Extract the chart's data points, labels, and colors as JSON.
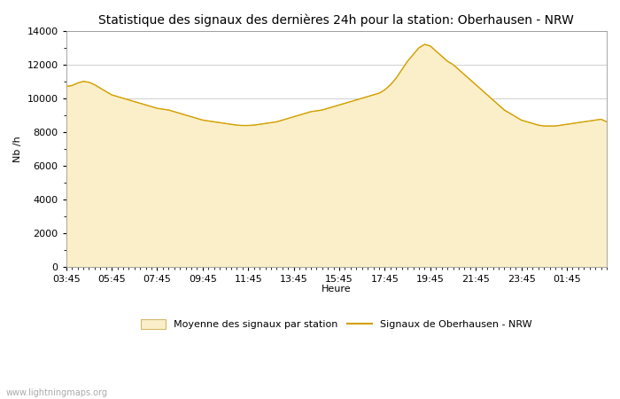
{
  "title": "Statistique des signaux des dernières 24h pour la station: Oberhausen - NRW",
  "xlabel": "Heure",
  "ylabel": "Nb /h",
  "ylim": [
    0,
    14000
  ],
  "yticks": [
    0,
    2000,
    4000,
    6000,
    8000,
    10000,
    12000,
    14000
  ],
  "x_labels": [
    "03:45",
    "05:45",
    "07:45",
    "09:45",
    "11:45",
    "13:45",
    "15:45",
    "17:45",
    "19:45",
    "21:45",
    "23:45",
    "01:45",
    "03:45"
  ],
  "fill_color": "#FAEFC8",
  "fill_edge_color": "#D4B86A",
  "line_color": "#D4A000",
  "background_color": "#FFFFFF",
  "grid_color": "#C8C8C8",
  "watermark": "www.lightningmaps.org",
  "legend_fill_label": "Moyenne des signaux par station",
  "legend_line_label": "Signaux de Oberhausen - NRW",
  "mean_values": [
    10700,
    10750,
    10900,
    11000,
    10950,
    10800,
    10600,
    10400,
    10200,
    10100,
    10000,
    9900,
    9800,
    9700,
    9600,
    9500,
    9400,
    9350,
    9300,
    9200,
    9100,
    9000,
    8900,
    8800,
    8700,
    8650,
    8600,
    8550,
    8500,
    8450,
    8400,
    8380,
    8380,
    8400,
    8450,
    8500,
    8550,
    8600,
    8700,
    8800,
    8900,
    9000,
    9100,
    9200,
    9250,
    9300,
    9400,
    9500,
    9600,
    9700,
    9800,
    9900,
    10000,
    10100,
    10200,
    10300,
    10500,
    10800,
    11200,
    11700,
    12200,
    12600,
    13000,
    13200,
    13100,
    12800,
    12500,
    12200,
    12000,
    11700,
    11400,
    11100,
    10800,
    10500,
    10200,
    9900,
    9600,
    9300,
    9100,
    8900,
    8700,
    8600,
    8500,
    8400,
    8350,
    8350,
    8350,
    8400,
    8450,
    8500,
    8550,
    8600,
    8650,
    8700,
    8750,
    8600
  ],
  "station_values": [
    10700,
    10750,
    10900,
    11000,
    10950,
    10800,
    10600,
    10400,
    10200,
    10100,
    10000,
    9900,
    9800,
    9700,
    9600,
    9500,
    9400,
    9350,
    9300,
    9200,
    9100,
    9000,
    8900,
    8800,
    8700,
    8650,
    8600,
    8550,
    8500,
    8450,
    8400,
    8380,
    8380,
    8400,
    8450,
    8500,
    8550,
    8600,
    8700,
    8800,
    8900,
    9000,
    9100,
    9200,
    9250,
    9300,
    9400,
    9500,
    9600,
    9700,
    9800,
    9900,
    10000,
    10100,
    10200,
    10300,
    10500,
    10800,
    11200,
    11700,
    12200,
    12600,
    13000,
    13200,
    13100,
    12800,
    12500,
    12200,
    12000,
    11700,
    11400,
    11100,
    10800,
    10500,
    10200,
    9900,
    9600,
    9300,
    9100,
    8900,
    8700,
    8600,
    8500,
    8400,
    8350,
    8350,
    8350,
    8400,
    8450,
    8500,
    8550,
    8600,
    8650,
    8700,
    8750,
    8600
  ],
  "title_fontsize": 10,
  "axis_fontsize": 8,
  "tick_fontsize": 8,
  "watermark_fontsize": 7
}
